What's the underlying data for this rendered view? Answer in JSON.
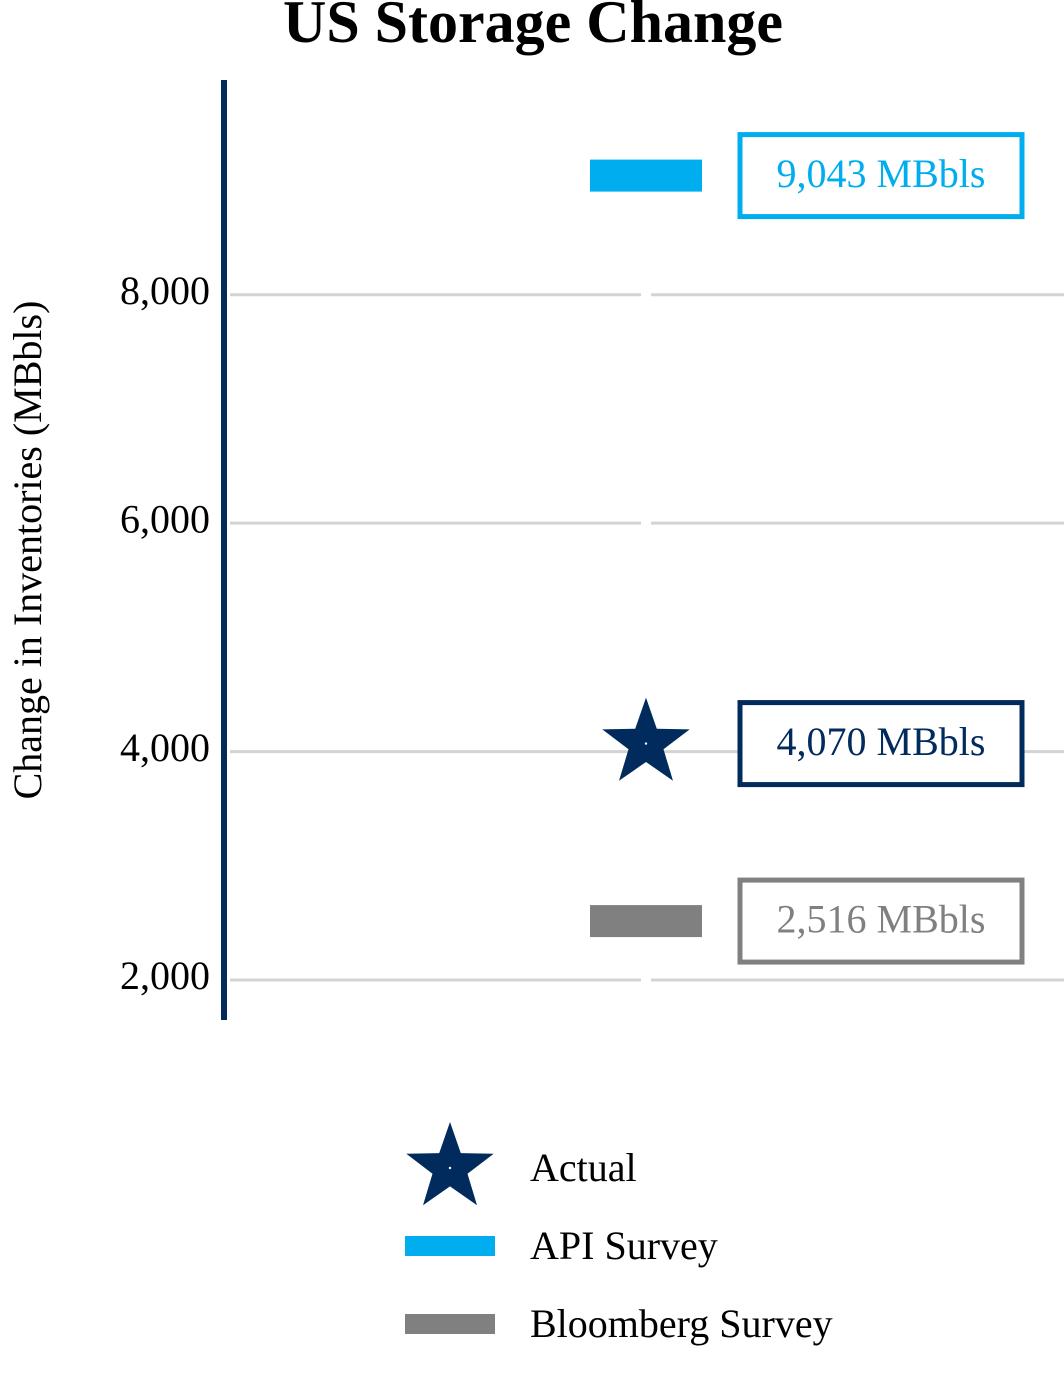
{
  "chart_data": {
    "type": "scatter",
    "title": "US Storage Change",
    "y_label": "Change in Inventories (MBbls)",
    "ylim": [
      1650,
      9880
    ],
    "yticks": [
      {
        "value": 2000,
        "label": "2,000"
      },
      {
        "value": 4000,
        "label": "4,000"
      },
      {
        "value": 6000,
        "label": "6,000"
      },
      {
        "value": 8000,
        "label": "8,000"
      }
    ],
    "grid": true,
    "series": [
      {
        "name": "Actual",
        "color": "#002b5c",
        "marker": "star",
        "values": [
          4070
        ],
        "value_labels": [
          "4,070 MBbls"
        ]
      },
      {
        "name": "API Survey",
        "color": "#00aeef",
        "marker": "dash",
        "values": [
          9043
        ],
        "value_labels": [
          "9,043 MBbls"
        ]
      },
      {
        "name": "Bloomberg Survey",
        "color": "#808080",
        "marker": "dash",
        "values": [
          2516
        ],
        "value_labels": [
          "2,516 MBbls"
        ]
      }
    ]
  }
}
